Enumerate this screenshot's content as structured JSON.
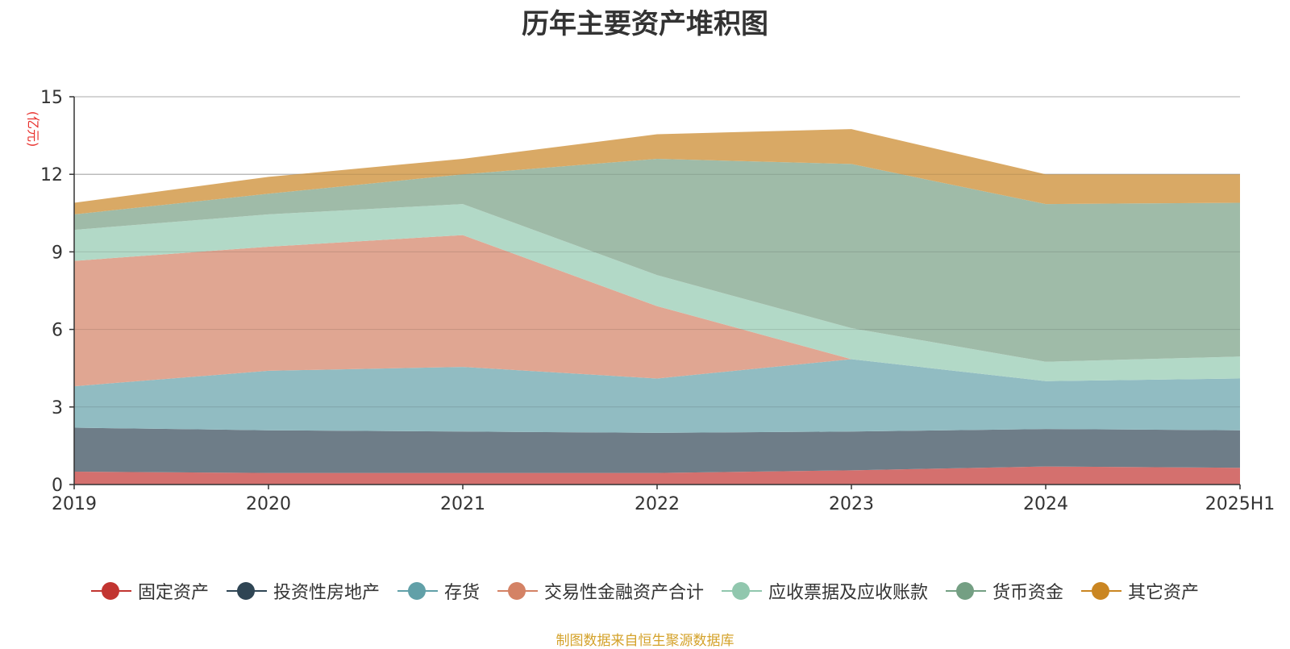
{
  "title": "历年主要资产堆积图",
  "unit": "(亿元)",
  "source": "制图数据来自恒生聚源数据库",
  "colors": {
    "title": "#333333",
    "unit": "#e8312d",
    "source": "#d4a22a",
    "axis": "#333333",
    "grid": "#bbbbbb"
  },
  "chart_data": {
    "type": "area",
    "stacked": true,
    "title": "历年主要资产堆积图",
    "ylabel": "(亿元)",
    "ylim": [
      0,
      15
    ],
    "yticks": [
      0,
      3,
      6,
      9,
      12,
      15
    ],
    "grid": true,
    "legend_position": "bottom",
    "categories": [
      "2019",
      "2020",
      "2021",
      "2022",
      "2023",
      "2024",
      "2025H1"
    ],
    "series": [
      {
        "name": "固定资产",
        "color": "#c23531",
        "fill": "#d4706e",
        "values": [
          0.5,
          0.45,
          0.45,
          0.45,
          0.55,
          0.7,
          0.65
        ]
      },
      {
        "name": "投资性房地产",
        "color": "#2f4554",
        "fill": "#6e7d88",
        "values": [
          1.7,
          1.65,
          1.6,
          1.55,
          1.5,
          1.45,
          1.45
        ]
      },
      {
        "name": "存货",
        "color": "#61a0a8",
        "fill": "#91bcc2",
        "values": [
          1.6,
          2.3,
          2.5,
          2.1,
          2.8,
          1.85,
          2.0
        ]
      },
      {
        "name": "交易性金融资产合计",
        "color": "#d48265",
        "fill": "#e0a692",
        "values": [
          4.85,
          4.8,
          5.1,
          2.8,
          0.0,
          0.0,
          0.0
        ]
      },
      {
        "name": "应收票据及应收账款",
        "color": "#91c7ae",
        "fill": "#b2d9c7",
        "values": [
          1.2,
          1.25,
          1.2,
          1.2,
          1.2,
          0.75,
          0.85
        ]
      },
      {
        "name": "货币资金",
        "color": "#749f83",
        "fill": "#9fbba8",
        "values": [
          0.6,
          0.8,
          1.15,
          4.5,
          6.35,
          6.1,
          5.95
        ]
      },
      {
        "name": "其它资产",
        "color": "#ca8622",
        "fill": "#d9a965",
        "values": [
          0.45,
          0.65,
          0.6,
          0.95,
          1.35,
          1.15,
          1.1
        ]
      }
    ]
  }
}
